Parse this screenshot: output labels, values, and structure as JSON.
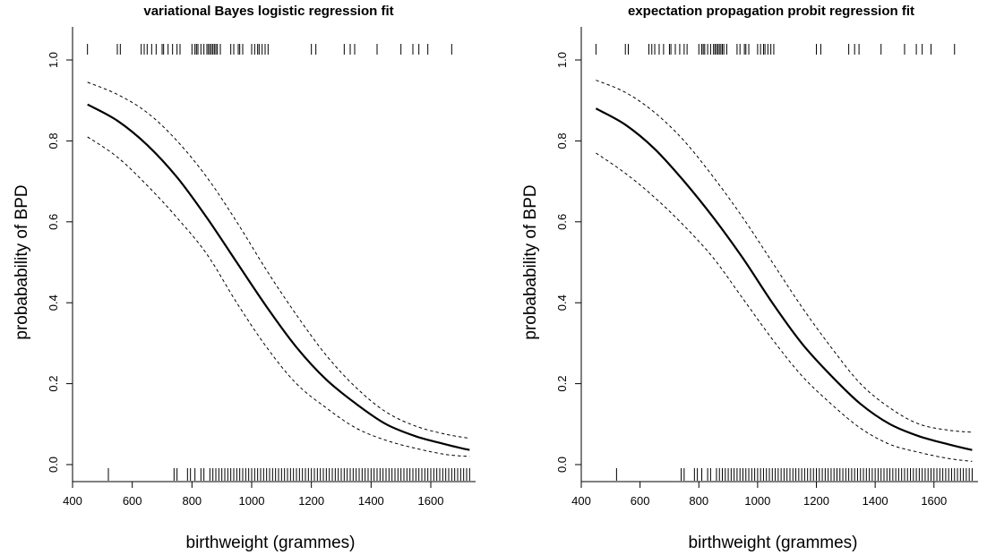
{
  "chart_data": [
    {
      "type": "line",
      "title": "variational Bayes logistic regression fit",
      "xlabel": "birthweight (grammes)",
      "ylabel": "probabability of BPD",
      "xlim": [
        400,
        1750
      ],
      "ylim": [
        0,
        1
      ],
      "xticks": [
        400,
        600,
        800,
        1000,
        1200,
        1400,
        1600
      ],
      "yticks": [
        0.0,
        0.2,
        0.4,
        0.6,
        0.8,
        1.0
      ],
      "xtick_labels": [
        "400",
        "600",
        "800",
        "1000",
        "1200",
        "1400",
        "1600"
      ],
      "ytick_labels": [
        "0.0",
        "0.2",
        "0.4",
        "0.6",
        "0.8",
        "1.0"
      ],
      "grid": false,
      "x": [
        450,
        550,
        650,
        750,
        850,
        950,
        1050,
        1150,
        1250,
        1350,
        1450,
        1550,
        1650,
        1730
      ],
      "series": [
        {
          "role": "fit",
          "values": [
            0.89,
            0.85,
            0.79,
            0.71,
            0.61,
            0.5,
            0.39,
            0.29,
            0.21,
            0.15,
            0.1,
            0.07,
            0.05,
            0.036
          ]
        },
        {
          "role": "upper",
          "values": [
            0.945,
            0.915,
            0.87,
            0.8,
            0.71,
            0.6,
            0.48,
            0.37,
            0.27,
            0.19,
            0.13,
            0.095,
            0.075,
            0.065
          ]
        },
        {
          "role": "lower",
          "values": [
            0.81,
            0.76,
            0.69,
            0.61,
            0.52,
            0.4,
            0.29,
            0.2,
            0.14,
            0.09,
            0.06,
            0.04,
            0.025,
            0.02
          ]
        }
      ],
      "rug_bpd": [
        450,
        550,
        560,
        630,
        640,
        650,
        665,
        680,
        700,
        705,
        720,
        735,
        750,
        760,
        800,
        810,
        815,
        820,
        830,
        840,
        850,
        855,
        860,
        865,
        870,
        875,
        880,
        885,
        895,
        930,
        940,
        955,
        960,
        970,
        1000,
        1010,
        1020,
        1025,
        1035,
        1045,
        1055,
        1200,
        1215,
        1310,
        1330,
        1345,
        1420,
        1500,
        1540,
        1560,
        1590,
        1670
      ],
      "rug_no_bpd": [
        520,
        740,
        750,
        785,
        795,
        810,
        830,
        840,
        860,
        870,
        880,
        890,
        900,
        910,
        920,
        930,
        940,
        950,
        960,
        970,
        980,
        990,
        1000,
        1010,
        1020,
        1030,
        1040,
        1050,
        1060,
        1070,
        1080,
        1090,
        1100,
        1110,
        1120,
        1130,
        1140,
        1150,
        1160,
        1170,
        1180,
        1190,
        1200,
        1210,
        1220,
        1230,
        1240,
        1250,
        1260,
        1270,
        1280,
        1290,
        1300,
        1310,
        1320,
        1330,
        1340,
        1350,
        1360,
        1370,
        1380,
        1390,
        1400,
        1410,
        1420,
        1430,
        1440,
        1450,
        1460,
        1470,
        1480,
        1490,
        1500,
        1510,
        1520,
        1530,
        1540,
        1550,
        1560,
        1570,
        1580,
        1590,
        1600,
        1610,
        1620,
        1630,
        1640,
        1650,
        1660,
        1670,
        1680,
        1690,
        1700,
        1710,
        1720,
        1730
      ]
    },
    {
      "type": "line",
      "title": "expectation propagation probit regression fit",
      "xlabel": "birthweight (grammes)",
      "ylabel": "probabability of BPD",
      "xlim": [
        400,
        1750
      ],
      "ylim": [
        0,
        1
      ],
      "xticks": [
        400,
        600,
        800,
        1000,
        1200,
        1400,
        1600
      ],
      "yticks": [
        0.0,
        0.2,
        0.4,
        0.6,
        0.8,
        1.0
      ],
      "xtick_labels": [
        "400",
        "600",
        "800",
        "1000",
        "1200",
        "1400",
        "1600"
      ],
      "ytick_labels": [
        "0.0",
        "0.2",
        "0.4",
        "0.6",
        "0.8",
        "1.0"
      ],
      "grid": false,
      "x": [
        450,
        550,
        650,
        750,
        850,
        950,
        1050,
        1150,
        1250,
        1350,
        1450,
        1550,
        1650,
        1730
      ],
      "series": [
        {
          "role": "fit",
          "values": [
            0.88,
            0.84,
            0.78,
            0.7,
            0.61,
            0.51,
            0.4,
            0.3,
            0.22,
            0.15,
            0.1,
            0.07,
            0.05,
            0.036
          ]
        },
        {
          "role": "upper",
          "values": [
            0.95,
            0.92,
            0.87,
            0.8,
            0.71,
            0.61,
            0.5,
            0.39,
            0.29,
            0.2,
            0.14,
            0.1,
            0.085,
            0.08
          ]
        },
        {
          "role": "lower",
          "values": [
            0.77,
            0.72,
            0.66,
            0.59,
            0.51,
            0.41,
            0.31,
            0.22,
            0.15,
            0.09,
            0.05,
            0.03,
            0.015,
            0.008
          ]
        }
      ],
      "rug_bpd": [
        450,
        550,
        560,
        630,
        640,
        650,
        665,
        680,
        700,
        705,
        720,
        735,
        750,
        760,
        800,
        810,
        815,
        820,
        830,
        840,
        850,
        855,
        860,
        865,
        870,
        875,
        880,
        885,
        895,
        930,
        940,
        955,
        960,
        970,
        1000,
        1010,
        1020,
        1025,
        1035,
        1045,
        1055,
        1200,
        1215,
        1310,
        1330,
        1345,
        1420,
        1500,
        1540,
        1560,
        1590,
        1670
      ],
      "rug_no_bpd": [
        520,
        740,
        750,
        785,
        795,
        810,
        830,
        840,
        860,
        870,
        880,
        890,
        900,
        910,
        920,
        930,
        940,
        950,
        960,
        970,
        980,
        990,
        1000,
        1010,
        1020,
        1030,
        1040,
        1050,
        1060,
        1070,
        1080,
        1090,
        1100,
        1110,
        1120,
        1130,
        1140,
        1150,
        1160,
        1170,
        1180,
        1190,
        1200,
        1210,
        1220,
        1230,
        1240,
        1250,
        1260,
        1270,
        1280,
        1290,
        1300,
        1310,
        1320,
        1330,
        1340,
        1350,
        1360,
        1370,
        1380,
        1390,
        1400,
        1410,
        1420,
        1430,
        1440,
        1450,
        1460,
        1470,
        1480,
        1490,
        1500,
        1510,
        1520,
        1530,
        1540,
        1550,
        1560,
        1570,
        1580,
        1590,
        1600,
        1610,
        1620,
        1630,
        1640,
        1650,
        1660,
        1670,
        1680,
        1690,
        1700,
        1710,
        1720,
        1730
      ]
    }
  ]
}
